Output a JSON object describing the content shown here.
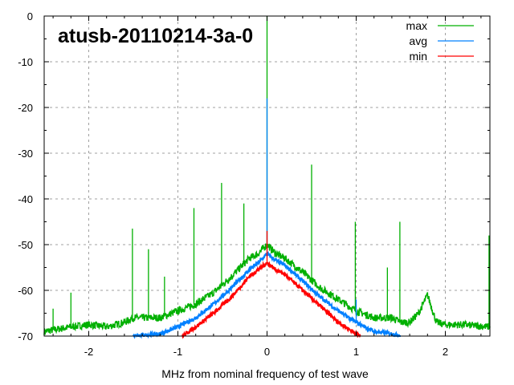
{
  "chart_data": {
    "type": "line",
    "title": "atusb-20110214-3a-0",
    "xlabel": "MHz from nominal frequency of test wave",
    "ylabel": "",
    "xlim": [
      -2.5,
      2.5
    ],
    "ylim": [
      -70,
      0
    ],
    "xticks": [
      "-2",
      "-1",
      "0",
      "1",
      "2"
    ],
    "xtick_values": [
      -2,
      -1,
      0,
      1,
      2
    ],
    "yticks": [
      "0",
      "-10",
      "-20",
      "-30",
      "-40",
      "-50",
      "-60",
      "-70"
    ],
    "ytick_values": [
      0,
      -10,
      -20,
      -30,
      -40,
      -50,
      -60,
      -70
    ],
    "grid": true,
    "legend_position": "top-right",
    "series": [
      {
        "name": "max",
        "color": "#00b000",
        "x": [
          -2.5,
          -2.2,
          -2.0,
          -1.8,
          -1.6,
          -1.5,
          -1.4,
          -1.2,
          -1.0,
          -0.8,
          -0.6,
          -0.4,
          -0.2,
          -0.1,
          0,
          0.1,
          0.2,
          0.4,
          0.6,
          0.8,
          1.0,
          1.2,
          1.4,
          1.5,
          1.6,
          1.7,
          1.8,
          1.9,
          2.0,
          2.2,
          2.5
        ],
        "y": [
          -69,
          -68,
          -67.5,
          -68,
          -67,
          -66,
          -66,
          -66,
          -64.5,
          -63,
          -60.5,
          -57,
          -53,
          -52,
          -50,
          -52,
          -53,
          -56,
          -59.5,
          -62,
          -64.5,
          -66,
          -66,
          -67,
          -67,
          -65,
          -61,
          -67,
          -67.5,
          -67.5,
          -68
        ],
        "spikes": [
          [
            -2.4,
            -64
          ],
          [
            -2.2,
            -60.5
          ],
          [
            -1.51,
            -46.5
          ],
          [
            -1.33,
            -51
          ],
          [
            -1.15,
            -57
          ],
          [
            -0.82,
            -42
          ],
          [
            -0.51,
            -36.5
          ],
          [
            -0.26,
            -41
          ],
          [
            0,
            0
          ],
          [
            0.5,
            -32.5
          ],
          [
            0.99,
            -45
          ],
          [
            1.35,
            -55
          ],
          [
            1.49,
            -45
          ],
          [
            2.49,
            -48
          ]
        ]
      },
      {
        "name": "avg",
        "color": "#0080ff",
        "x": [
          -1.5,
          -1.2,
          -1.0,
          -0.8,
          -0.6,
          -0.4,
          -0.2,
          -0.1,
          0,
          0.1,
          0.2,
          0.4,
          0.6,
          0.8,
          1.0,
          1.2,
          1.4,
          1.5
        ],
        "y": [
          -70,
          -69.5,
          -68,
          -66,
          -63,
          -59.5,
          -55.5,
          -54,
          -52,
          -53.5,
          -54.5,
          -58,
          -61.5,
          -64.5,
          -67,
          -69,
          -69.5,
          -70
        ],
        "spikes": [
          [
            0,
            -18
          ],
          [
            1.0,
            -62
          ]
        ]
      },
      {
        "name": "min",
        "color": "#ff0000",
        "x": [
          -0.95,
          -0.8,
          -0.6,
          -0.4,
          -0.2,
          -0.1,
          0,
          0.1,
          0.2,
          0.4,
          0.6,
          0.8,
          1.0,
          1.05
        ],
        "y": [
          -70,
          -68,
          -65,
          -61.5,
          -57,
          -55.5,
          -54,
          -55.5,
          -56.5,
          -60,
          -63.5,
          -67,
          -69.5,
          -70
        ],
        "spikes": [
          [
            0,
            -47
          ]
        ]
      }
    ]
  }
}
